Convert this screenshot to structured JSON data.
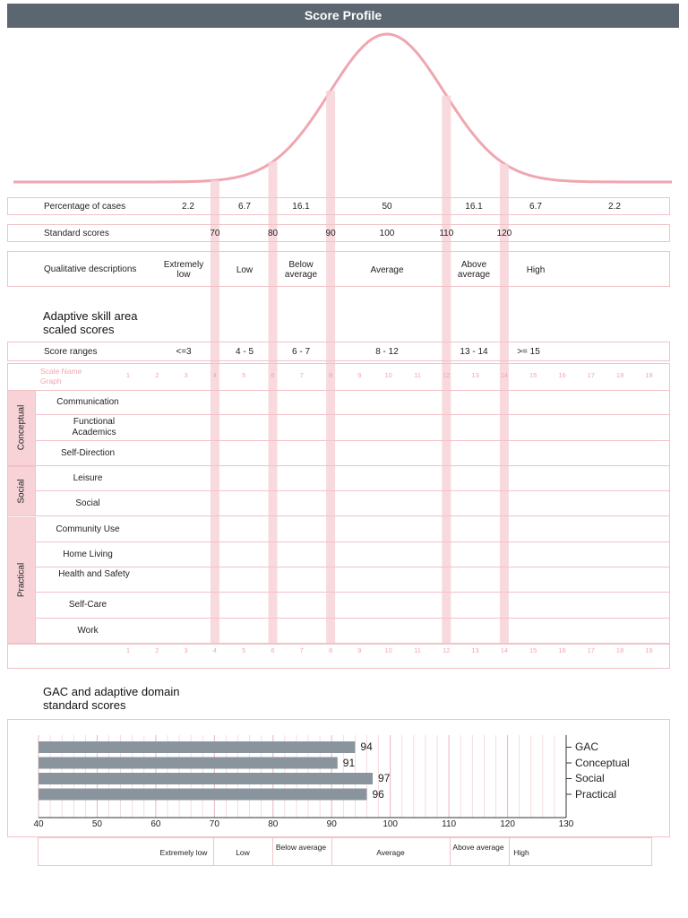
{
  "header": {
    "title": "Score Profile"
  },
  "profile": {
    "percentage_label": "Percentage of cases",
    "percentages": [
      "2.2",
      "6.7",
      "16.1",
      "50",
      "16.1",
      "6.7",
      "2.2"
    ],
    "standard_label": "Standard scores",
    "standard_scores": [
      "70",
      "80",
      "90",
      "100",
      "110",
      "120"
    ],
    "qualitative_label": "Qualitative descriptions",
    "qualitative": [
      "Extremely low",
      "Low",
      "Below average",
      "Average",
      "Above average",
      "High"
    ],
    "skill_title": "Adaptive skill area scaled scores",
    "score_ranges_label": "Score ranges",
    "score_ranges": [
      "<=3",
      "4 - 5",
      "6 - 7",
      "8 - 12",
      "13 - 14",
      ">= 15"
    ],
    "scale_name_label": "Scale Name",
    "graph_label": "Graph",
    "scale_numbers": [
      "1",
      "2",
      "3",
      "4",
      "5",
      "6",
      "7",
      "8",
      "9",
      "10",
      "11",
      "12",
      "13",
      "14",
      "15",
      "16",
      "17",
      "18",
      "19"
    ],
    "domains": [
      {
        "name": "Conceptual",
        "skills": [
          "Communication",
          "Functional Academics",
          "Self-Direction"
        ]
      },
      {
        "name": "Social",
        "skills": [
          "Leisure",
          "Social"
        ]
      },
      {
        "name": "Practical",
        "skills": [
          "Community Use",
          "Home Living",
          "Health and Safety",
          "Self-Care",
          "Work"
        ]
      }
    ]
  },
  "chart_data": {
    "type": "bar",
    "title": "GAC and adaptive domain standard scores",
    "orientation": "horizontal",
    "categories": [
      "GAC",
      "Conceptual",
      "Social",
      "Practical"
    ],
    "values": [
      94,
      91,
      97,
      96
    ],
    "xlim": [
      40,
      130
    ],
    "xticks": [
      40,
      50,
      60,
      70,
      80,
      90,
      100,
      110,
      120,
      130
    ],
    "legend_placement": "right",
    "bar_color": "#8a949c",
    "bands": [
      "Extremely low",
      "Low",
      "Below average",
      "Average",
      "Above average",
      "High"
    ]
  },
  "colors": {
    "accent_pink": "#f2c2c8",
    "header_bg": "#5b6670"
  }
}
